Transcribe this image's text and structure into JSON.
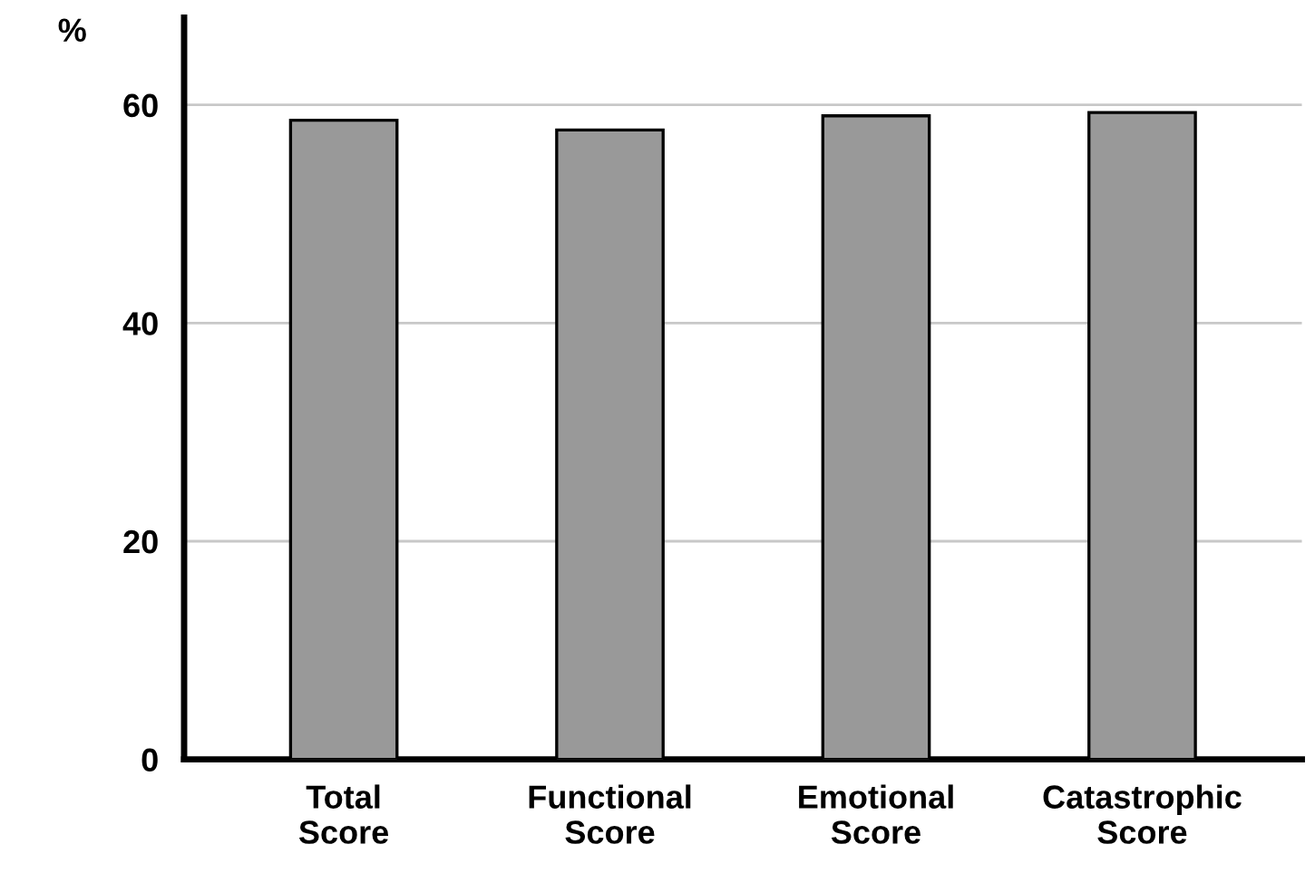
{
  "chart_data": {
    "type": "bar",
    "ylabel": "%",
    "categories": [
      "Total\nScore",
      "Functional\nScore",
      "Emotional\nScore",
      "Catastrophic\nScore"
    ],
    "values": [
      58.6,
      57.7,
      59.0,
      59.3
    ],
    "color": "#999999",
    "ylim": [
      0,
      68
    ],
    "yticks": [
      0,
      20,
      40,
      60
    ],
    "grid": "y"
  }
}
